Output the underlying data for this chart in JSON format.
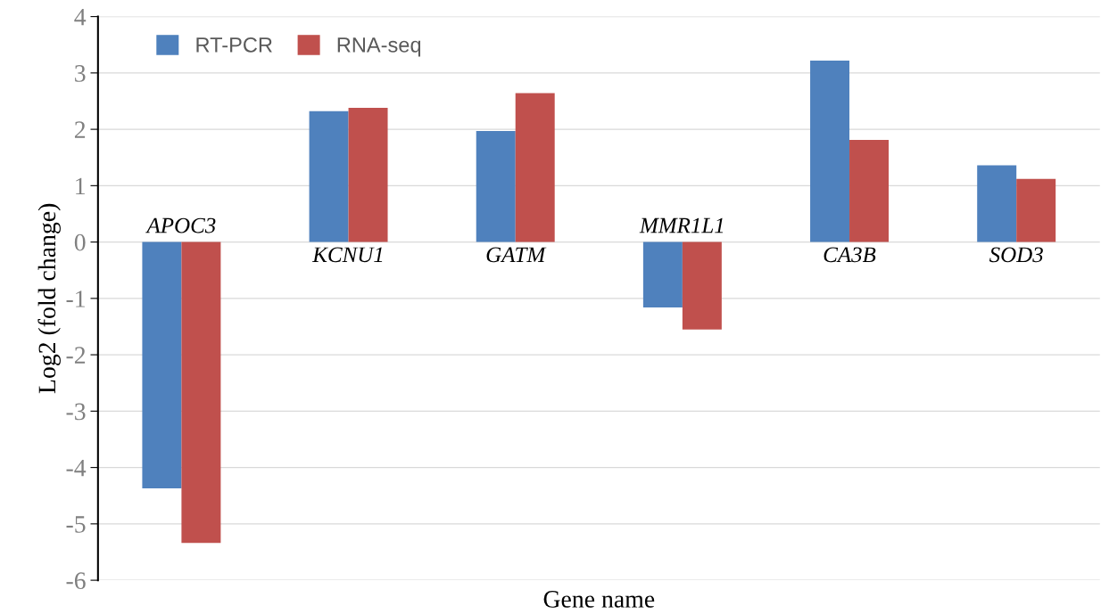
{
  "chart_data": {
    "type": "bar",
    "xlabel": "Gene name",
    "ylabel": "Log2 (fold change)",
    "categories": [
      "APOC3",
      "KCNU1",
      "GATM",
      "MMR1L1",
      "CA3B",
      "SOD3"
    ],
    "series": [
      {
        "name": "RT-PCR",
        "color": "#4f81bd",
        "values": [
          -4.37,
          2.32,
          1.97,
          -1.16,
          3.22,
          1.36
        ]
      },
      {
        "name": "RNA-seq",
        "color": "#c0504d",
        "values": [
          -5.34,
          2.38,
          2.64,
          -1.55,
          1.81,
          1.12
        ]
      }
    ],
    "ylim": [
      -6,
      4
    ],
    "yticks": [
      -6,
      -5,
      -4,
      -3,
      -2,
      -1,
      0,
      1,
      2,
      3,
      4
    ],
    "grid": "y",
    "legend": "top left"
  }
}
